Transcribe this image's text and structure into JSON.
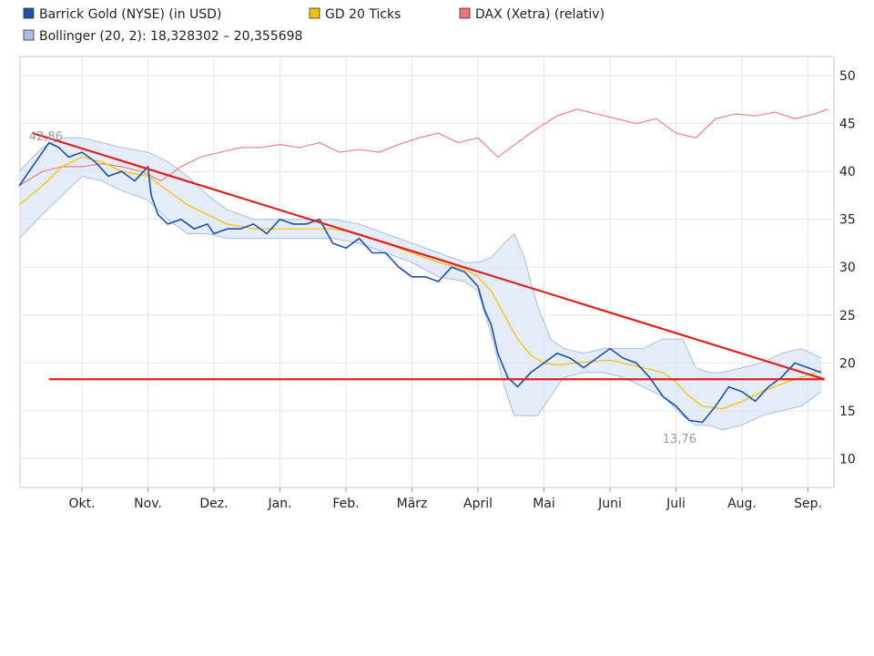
{
  "chart_data": {
    "type": "line",
    "title": "",
    "xlabel": "",
    "ylabel": "",
    "ylim": [
      7,
      52
    ],
    "grid": true,
    "legend_position": "top-left",
    "y_ticks": [
      10,
      15,
      20,
      25,
      30,
      35,
      40,
      45,
      50
    ],
    "x_ticks": [
      "Okt.",
      "Nov.",
      "Dez.",
      "Jan.",
      "Feb.",
      "März",
      "April",
      "Mai",
      "Juni",
      "Juli",
      "Aug.",
      "Sep."
    ],
    "legend": [
      {
        "label": "Barrick Gold (NYSE) (in USD)",
        "color": "#1f4fa8"
      },
      {
        "label": "GD 20 Ticks",
        "color": "#f2c200"
      },
      {
        "label": "DAX (Xetra) (relativ)",
        "color": "#ee7777"
      },
      {
        "label": "Bollinger (20, 2): 18,328302 – 20,355698",
        "color": "#a9bde6"
      }
    ],
    "annotations": [
      {
        "text": "42,86",
        "x": -0.5,
        "y": 42.86
      },
      {
        "text": "13,76",
        "x": 9.1,
        "y": 13.76
      }
    ],
    "series": [
      {
        "name": "Barrick Gold (NYSE) (in USD)",
        "color": "#1f4fa8",
        "x": [
          -0.95,
          -0.8,
          -0.65,
          -0.5,
          -0.35,
          -0.2,
          0,
          0.2,
          0.4,
          0.6,
          0.8,
          1.0,
          1.05,
          1.15,
          1.3,
          1.5,
          1.7,
          1.9,
          2.0,
          2.2,
          2.4,
          2.6,
          2.8,
          3.0,
          3.2,
          3.4,
          3.6,
          3.8,
          4.0,
          4.2,
          4.4,
          4.6,
          4.8,
          5.0,
          5.2,
          5.4,
          5.6,
          5.8,
          6.0,
          6.1,
          6.2,
          6.3,
          6.45,
          6.6,
          6.8,
          7.0,
          7.2,
          7.4,
          7.6,
          7.8,
          8.0,
          8.2,
          8.4,
          8.6,
          8.8,
          9.0,
          9.2,
          9.4,
          9.6,
          9.8,
          10.0,
          10.2,
          10.4,
          10.6,
          10.8,
          11.0,
          11.2
        ],
        "y": [
          38.5,
          40.0,
          41.5,
          43.0,
          42.5,
          41.5,
          42.0,
          41.0,
          39.5,
          40.0,
          39.0,
          40.5,
          37.5,
          35.5,
          34.5,
          35.0,
          34.0,
          34.5,
          33.5,
          34.0,
          34.0,
          34.5,
          33.5,
          35.0,
          34.5,
          34.5,
          35.0,
          32.5,
          32.0,
          33.0,
          31.5,
          31.5,
          30.0,
          29.0,
          29.0,
          28.5,
          30.0,
          29.5,
          28.0,
          25.5,
          24.0,
          21.0,
          18.5,
          17.5,
          19.0,
          20.0,
          21.0,
          20.5,
          19.5,
          20.5,
          21.5,
          20.5,
          20.0,
          18.5,
          16.5,
          15.5,
          14.0,
          13.8,
          15.5,
          17.5,
          17.0,
          16.0,
          17.5,
          18.5,
          20.0,
          19.5,
          19.0
        ]
      },
      {
        "name": "GD 20 Ticks",
        "color": "#f2c200",
        "x": [
          -0.95,
          -0.6,
          -0.3,
          0,
          0.3,
          0.6,
          1.0,
          1.3,
          1.6,
          1.9,
          2.2,
          2.6,
          3.0,
          3.4,
          3.8,
          4.2,
          4.6,
          5.0,
          5.4,
          5.8,
          6.0,
          6.2,
          6.4,
          6.6,
          6.8,
          7.0,
          7.2,
          7.5,
          7.8,
          8.0,
          8.2,
          8.5,
          8.8,
          9.0,
          9.2,
          9.4,
          9.7,
          10.0,
          10.3,
          10.6,
          10.9,
          11.2
        ],
        "y": [
          36.5,
          38.5,
          40.5,
          41.5,
          41.0,
          40.0,
          39.5,
          38.0,
          36.5,
          35.5,
          34.5,
          34.0,
          34.0,
          34.0,
          34.0,
          33.5,
          32.5,
          31.5,
          30.5,
          29.8,
          29.0,
          27.5,
          25.0,
          22.5,
          20.8,
          20.0,
          19.8,
          20.0,
          20.2,
          20.3,
          20.0,
          19.5,
          19.0,
          18.0,
          16.5,
          15.5,
          15.2,
          16.0,
          17.0,
          17.8,
          18.5,
          19.2
        ]
      },
      {
        "name": "DAX (Xetra) (relativ)",
        "color": "#ee7777",
        "x": [
          -0.95,
          -0.6,
          -0.3,
          0,
          0.3,
          0.6,
          0.9,
          1.2,
          1.5,
          1.8,
          2.1,
          2.4,
          2.7,
          3.0,
          3.3,
          3.6,
          3.9,
          4.2,
          4.5,
          4.8,
          5.1,
          5.4,
          5.7,
          6.0,
          6.3,
          6.6,
          6.9,
          7.2,
          7.5,
          7.8,
          8.1,
          8.4,
          8.7,
          9.0,
          9.3,
          9.6,
          9.9,
          10.2,
          10.5,
          10.8,
          11.1,
          11.3
        ],
        "y": [
          38.5,
          40.0,
          40.5,
          40.5,
          40.8,
          40.5,
          40.0,
          39.0,
          40.5,
          41.5,
          42.0,
          42.5,
          42.5,
          42.8,
          42.5,
          43.0,
          42.0,
          42.3,
          42.0,
          42.8,
          43.5,
          44.0,
          43.0,
          43.5,
          41.5,
          43.0,
          44.5,
          45.8,
          46.5,
          46.0,
          45.5,
          45.0,
          45.5,
          44.0,
          43.5,
          45.5,
          46.0,
          45.8,
          46.2,
          45.5,
          46.0,
          46.5
        ]
      },
      {
        "name": "Bollinger Upper",
        "color": "#a9bde6",
        "x": [
          -0.95,
          -0.6,
          -0.3,
          0,
          0.3,
          0.6,
          1.0,
          1.3,
          1.6,
          1.9,
          2.2,
          2.6,
          3.0,
          3.4,
          3.8,
          4.2,
          4.6,
          5.0,
          5.4,
          5.8,
          6.0,
          6.2,
          6.4,
          6.55,
          6.7,
          6.9,
          7.1,
          7.3,
          7.6,
          7.9,
          8.2,
          8.5,
          8.8,
          9.1,
          9.3,
          9.5,
          9.7,
          10.0,
          10.3,
          10.6,
          10.9,
          11.2
        ],
        "y": [
          40.0,
          42.5,
          43.5,
          43.5,
          43.0,
          42.5,
          42.0,
          41.0,
          39.5,
          37.5,
          36.0,
          35.0,
          35.0,
          35.0,
          35.0,
          34.5,
          33.5,
          32.5,
          31.5,
          30.5,
          30.5,
          31.0,
          32.5,
          33.5,
          31.0,
          26.0,
          22.5,
          21.5,
          21.0,
          21.5,
          21.5,
          21.5,
          22.5,
          22.5,
          19.5,
          19.0,
          19.0,
          19.5,
          20.0,
          21.0,
          21.5,
          20.5
        ]
      },
      {
        "name": "Bollinger Lower",
        "color": "#a9bde6",
        "x": [
          -0.95,
          -0.6,
          -0.3,
          0,
          0.3,
          0.6,
          1.0,
          1.3,
          1.6,
          1.9,
          2.2,
          2.6,
          3.0,
          3.4,
          3.8,
          4.2,
          4.6,
          5.0,
          5.4,
          5.8,
          6.0,
          6.2,
          6.4,
          6.55,
          6.7,
          6.9,
          7.1,
          7.3,
          7.6,
          7.9,
          8.2,
          8.5,
          8.8,
          9.1,
          9.3,
          9.5,
          9.7,
          10.0,
          10.3,
          10.6,
          10.9,
          11.2
        ],
        "y": [
          33.0,
          35.5,
          37.5,
          39.5,
          39.0,
          38.0,
          37.0,
          35.0,
          33.5,
          33.5,
          33.0,
          33.0,
          33.0,
          33.0,
          33.0,
          32.5,
          31.5,
          30.5,
          29.0,
          28.5,
          27.5,
          23.0,
          17.5,
          14.5,
          14.5,
          14.5,
          16.5,
          18.5,
          19.0,
          19.0,
          18.5,
          17.5,
          16.5,
          14.5,
          13.5,
          13.5,
          13.0,
          13.5,
          14.5,
          15.0,
          15.5,
          17.0
        ]
      }
    ],
    "trendlines": [
      {
        "color": "#dd2222",
        "x": [
          -0.75,
          11.25
        ],
        "y": [
          44.0,
          18.3
        ]
      },
      {
        "color": "#dd2222",
        "x": [
          -0.5,
          11.25
        ],
        "y": [
          18.3,
          18.3
        ]
      }
    ]
  }
}
